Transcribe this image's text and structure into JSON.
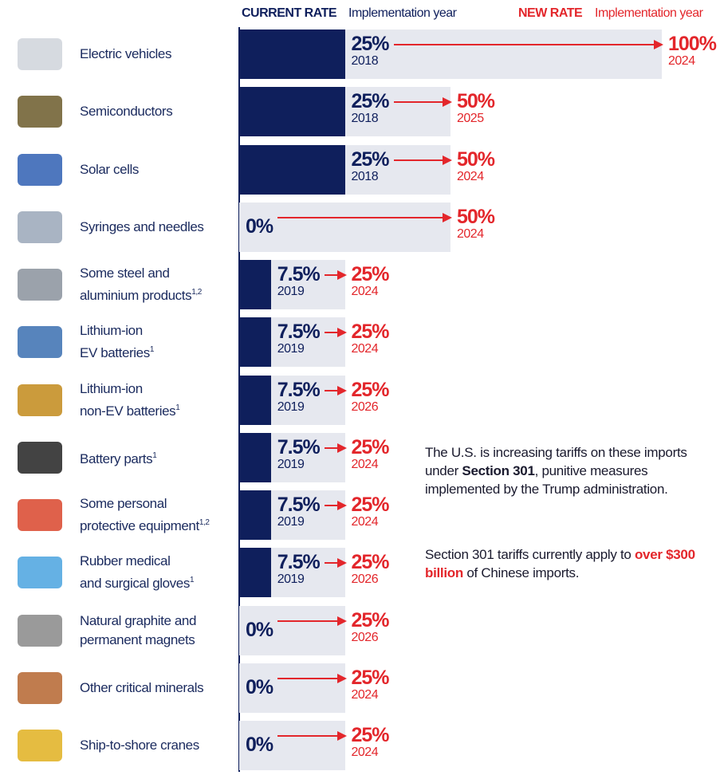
{
  "chart_data": {
    "type": "bar",
    "categories": [
      "Electric vehicles",
      "Semiconductors",
      "Solar cells",
      "Syringes and needles",
      "Some steel and\naluminium products",
      "Lithium-ion\nEV batteries",
      "Lithium-ion\nnon-EV batteries",
      "Battery parts",
      "Some personal\nprotective equipment",
      "Rubber medical\nand surgical gloves",
      "Natural graphite and\npermanent magnets",
      "Other critical minerals",
      "Ship-to-shore cranes"
    ],
    "footnotes": [
      null,
      null,
      null,
      null,
      "1,2",
      "1",
      "1",
      "1",
      "1,2",
      "1",
      null,
      null,
      null
    ],
    "xlim": [
      0,
      100
    ],
    "series": [
      {
        "name": "CURRENT RATE",
        "year_label": "Implementation year",
        "color": "#0f1f5c",
        "values": [
          25,
          25,
          25,
          0,
          7.5,
          7.5,
          7.5,
          7.5,
          7.5,
          7.5,
          0,
          0,
          0
        ],
        "value_labels": [
          "25%",
          "25%",
          "25%",
          "0%",
          "7.5%",
          "7.5%",
          "7.5%",
          "7.5%",
          "7.5%",
          "7.5%",
          "0%",
          "0%",
          "0%"
        ],
        "years": [
          2018,
          2018,
          2018,
          null,
          2019,
          2019,
          2019,
          2019,
          2019,
          2019,
          null,
          null,
          null
        ]
      },
      {
        "name": "NEW RATE",
        "year_label": "Implementation year",
        "color": "#e3262b",
        "values": [
          100,
          50,
          50,
          50,
          25,
          25,
          25,
          25,
          25,
          25,
          25,
          25,
          25
        ],
        "value_labels": [
          "100%",
          "50%",
          "50%",
          "50%",
          "25%",
          "25%",
          "25%",
          "25%",
          "25%",
          "25%",
          "25%",
          "25%",
          "25%"
        ],
        "years": [
          2024,
          2025,
          2024,
          2024,
          2024,
          2024,
          2026,
          2024,
          2024,
          2026,
          2026,
          2024,
          2024
        ]
      }
    ],
    "notes": [
      [
        "The U.S. is increasing tariffs on these imports under ",
        "Section 301",
        ", punitive measures implemented by the Trump administration."
      ],
      [
        "Section 301 tariffs currently apply to ",
        "over $300 billion",
        " of Chinese imports."
      ]
    ]
  }
}
